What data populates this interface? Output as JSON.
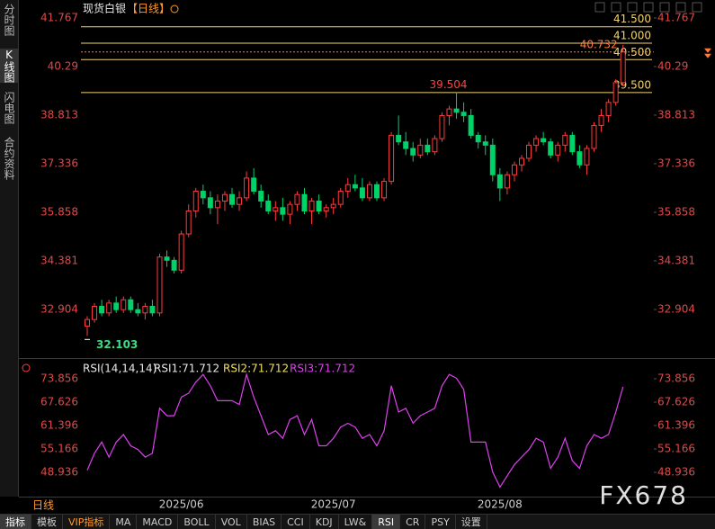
{
  "ui": {
    "side_tabs": [
      "分时图",
      "K线图",
      "闪电图",
      "合约资料"
    ],
    "active_side_tab": 1,
    "bottom_tabs": [
      "指标",
      "模板",
      "VIP指标",
      "MA",
      "MACD",
      "BOLL",
      "VOL",
      "BIAS",
      "CCI",
      "KDJ",
      "LW&",
      "RSI",
      "CR",
      "PSY",
      "设置"
    ],
    "active_bottom_tabs": [
      0,
      11
    ],
    "accent_tab": 2,
    "period_label": "日线",
    "watermark": "FX678"
  },
  "chart_data": [
    {
      "type": "candlestick",
      "title": "现货白银",
      "period": "【日线】",
      "categories": [
        null,
        null,
        null,
        null,
        null,
        null,
        null,
        null,
        null,
        null,
        null,
        null,
        null,
        "2025/06",
        null,
        null,
        null,
        null,
        null,
        null,
        null,
        null,
        null,
        null,
        null,
        null,
        null,
        null,
        null,
        null,
        null,
        null,
        null,
        null,
        "2025/07",
        null,
        null,
        null,
        null,
        null,
        null,
        null,
        null,
        null,
        null,
        null,
        null,
        null,
        null,
        null,
        null,
        null,
        null,
        null,
        null,
        null,
        null,
        "2025/08",
        null,
        null,
        null,
        null,
        null,
        null,
        null,
        null,
        null,
        null,
        null,
        null,
        null,
        null,
        null,
        null,
        null
      ],
      "open": [
        32.4,
        32.6,
        33.0,
        32.8,
        33.1,
        32.9,
        33.2,
        32.9,
        32.8,
        33.0,
        32.8,
        34.5,
        34.4,
        34.1,
        35.2,
        35.9,
        36.5,
        36.3,
        36.0,
        36.2,
        36.4,
        36.1,
        36.3,
        36.9,
        36.5,
        36.2,
        35.9,
        36.0,
        35.8,
        36.1,
        36.4,
        35.9,
        36.2,
        35.9,
        36.0,
        36.1,
        36.5,
        36.7,
        36.6,
        36.3,
        36.7,
        36.3,
        36.8,
        38.2,
        38.0,
        37.8,
        37.6,
        37.9,
        37.7,
        38.1,
        38.8,
        39.0,
        38.9,
        38.8,
        38.2,
        38.0,
        37.9,
        37.0,
        36.6,
        37.0,
        37.3,
        37.5,
        37.9,
        38.1,
        38.0,
        37.6,
        37.9,
        38.2,
        37.7,
        37.3,
        37.8,
        38.5,
        38.8,
        39.2,
        39.8
      ],
      "high": [
        32.7,
        33.1,
        33.2,
        33.2,
        33.3,
        33.3,
        33.3,
        33.1,
        33.1,
        33.2,
        34.6,
        34.7,
        34.5,
        35.3,
        36.1,
        36.6,
        36.7,
        36.5,
        36.4,
        36.5,
        36.6,
        36.5,
        37.1,
        37.2,
        36.7,
        36.4,
        36.2,
        36.3,
        36.2,
        36.5,
        36.6,
        36.3,
        36.4,
        36.1,
        36.3,
        36.6,
        36.9,
        37.0,
        36.9,
        36.8,
        36.8,
        36.9,
        38.3,
        38.8,
        38.3,
        38.0,
        38.1,
        38.1,
        38.2,
        38.9,
        39.1,
        39.504,
        39.2,
        39.0,
        38.3,
        38.2,
        38.1,
        37.2,
        37.1,
        37.4,
        37.6,
        38.0,
        38.2,
        38.3,
        38.1,
        38.0,
        38.3,
        38.3,
        37.9,
        37.9,
        38.6,
        39.0,
        39.3,
        39.9,
        40.95
      ],
      "low": [
        32.103,
        32.5,
        32.7,
        32.7,
        32.8,
        32.8,
        32.8,
        32.7,
        32.6,
        32.7,
        32.7,
        34.2,
        34.0,
        34.0,
        35.1,
        35.7,
        36.1,
        35.8,
        35.5,
        35.9,
        36.0,
        35.9,
        36.2,
        36.4,
        36.0,
        35.8,
        35.6,
        35.6,
        35.5,
        35.9,
        35.8,
        35.5,
        35.8,
        35.7,
        35.8,
        36.0,
        36.3,
        36.5,
        36.2,
        36.2,
        36.2,
        36.2,
        36.7,
        37.9,
        37.6,
        37.4,
        37.5,
        37.6,
        37.6,
        38.0,
        38.5,
        38.7,
        38.6,
        38.1,
        37.8,
        37.6,
        36.8,
        36.2,
        36.4,
        36.8,
        37.1,
        37.4,
        37.7,
        37.9,
        37.5,
        37.4,
        37.7,
        37.6,
        37.2,
        37.0,
        37.7,
        38.3,
        38.6,
        39.1,
        39.7
      ],
      "close": [
        32.6,
        33.0,
        32.8,
        33.1,
        32.9,
        33.2,
        32.9,
        32.8,
        33.0,
        32.8,
        34.5,
        34.4,
        34.1,
        35.2,
        35.9,
        36.5,
        36.3,
        36.0,
        36.2,
        36.4,
        36.1,
        36.3,
        36.9,
        36.5,
        36.2,
        35.9,
        36.0,
        35.8,
        36.1,
        36.4,
        35.9,
        36.2,
        35.9,
        36.0,
        36.1,
        36.5,
        36.7,
        36.6,
        36.3,
        36.7,
        36.3,
        36.8,
        38.2,
        38.0,
        37.8,
        37.6,
        37.9,
        37.7,
        38.1,
        38.8,
        39.0,
        38.9,
        38.8,
        38.2,
        38.0,
        37.9,
        37.0,
        36.6,
        37.0,
        37.3,
        37.5,
        37.9,
        38.1,
        38.0,
        37.6,
        37.9,
        38.2,
        37.7,
        37.3,
        37.8,
        38.5,
        38.8,
        39.2,
        39.8,
        40.732
      ],
      "up_color": "#ff3b3b",
      "down_color": "#00d26a",
      "ylim": [
        31.51,
        41.93
      ],
      "yticks": [
        32.904,
        34.381,
        35.858,
        37.336,
        38.813,
        40.29,
        41.767
      ],
      "levels": [
        {
          "value": 41.5,
          "label": "41.500"
        },
        {
          "value": 41.0,
          "label": "41.000"
        },
        {
          "value": 40.5,
          "label": "40.500"
        },
        {
          "value": 39.5,
          "label": "39.500"
        }
      ],
      "level_color": "#f3d36b",
      "marked_prices": [
        32.103,
        39.504,
        40.732
      ],
      "marked_colors": [
        "#3ddc84",
        "#ff4040",
        "#ff7a3a"
      ]
    },
    {
      "type": "line",
      "title": "RSI(14,14,14)",
      "indicator_labels": [
        "RSI1:71.712",
        "RSI2:71.712",
        "RSI3:71.712"
      ],
      "indicator_colors": [
        "#e8e8e8",
        "#f3e05a",
        "#e040f0"
      ],
      "series": [
        {
          "color": "#e040f0",
          "values": [
            49.5,
            54,
            57,
            53,
            57,
            59,
            56,
            55,
            53,
            54,
            66,
            64,
            64,
            69,
            70,
            73,
            75,
            72,
            68,
            68,
            68,
            67,
            75,
            69,
            64,
            59,
            60,
            58,
            63,
            64,
            59,
            63,
            56,
            56,
            58,
            61,
            62,
            61,
            58,
            59,
            56,
            60,
            72,
            65,
            66,
            62,
            64,
            65,
            66,
            72,
            75,
            74,
            71,
            57,
            57,
            57,
            49,
            45,
            48,
            51,
            53,
            55,
            58,
            57,
            50,
            53,
            58,
            52,
            50,
            56,
            59,
            58,
            59,
            65,
            71.712
          ]
        }
      ],
      "ylim": [
        42.47,
        77.93
      ],
      "yticks": [
        48.936,
        55.166,
        61.396,
        67.626,
        73.856
      ]
    }
  ]
}
